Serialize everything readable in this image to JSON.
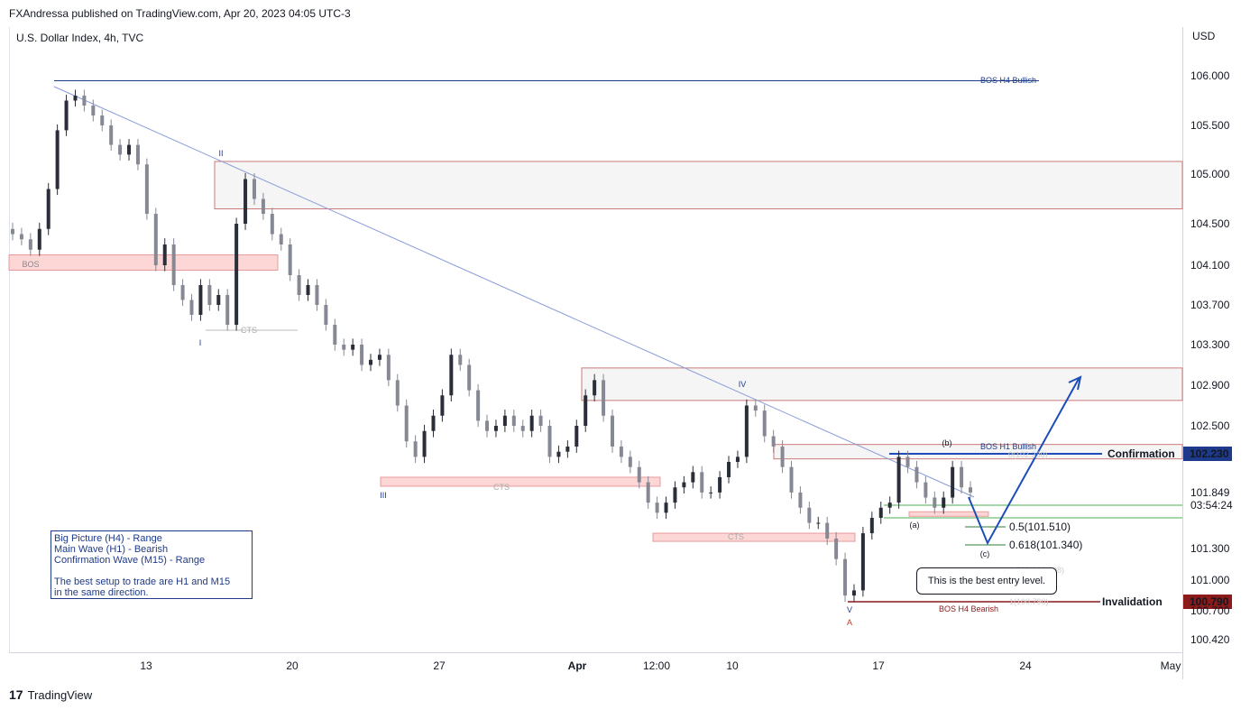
{
  "header": {
    "publish_line": "FXAndressa published on TradingView.com, Apr 20, 2023 04:05 UTC-3",
    "symbol_line": "U.S. Dollar Index, 4h, TVC"
  },
  "footer": {
    "brand": "TradingView",
    "logo_glyph": "17"
  },
  "chart_data": {
    "type": "candlestick",
    "currency_label": "USD",
    "price_ticks": [
      106.0,
      105.5,
      105.0,
      104.5,
      104.1,
      103.7,
      103.3,
      102.9,
      102.5,
      101.3,
      101.0,
      100.7,
      100.42
    ],
    "price_tick_labels": [
      "106.000",
      "105.500",
      "105.000",
      "104.500",
      "104.100",
      "103.700",
      "103.300",
      "102.900",
      "102.500",
      "101.300",
      "101.000",
      "100.700",
      "100.420"
    ],
    "time_labels": [
      "13",
      "20",
      "27",
      "Apr",
      "12:00",
      "10",
      "17",
      "24",
      "May"
    ],
    "series_close": [
      104.4,
      104.35,
      104.25,
      104.45,
      104.85,
      105.45,
      105.75,
      105.8,
      105.7,
      105.6,
      105.5,
      105.3,
      105.2,
      105.3,
      105.1,
      104.6,
      104.1,
      104.3,
      103.9,
      103.75,
      103.6,
      103.9,
      103.7,
      103.8,
      103.5,
      104.5,
      104.95,
      104.75,
      104.6,
      104.4,
      104.3,
      104.0,
      103.8,
      103.9,
      103.7,
      103.5,
      103.3,
      103.25,
      103.3,
      103.1,
      103.15,
      103.2,
      102.95,
      102.7,
      102.35,
      102.2,
      102.45,
      102.6,
      102.8,
      103.2,
      103.1,
      102.85,
      102.55,
      102.45,
      102.5,
      102.6,
      102.5,
      102.45,
      102.6,
      102.5,
      102.2,
      102.25,
      102.3,
      102.5,
      102.8,
      102.95,
      102.6,
      102.3,
      102.2,
      102.1,
      101.95,
      101.75,
      101.65,
      101.75,
      101.9,
      101.95,
      102.05,
      101.85,
      101.85,
      102.0,
      102.15,
      102.2,
      102.7,
      102.65,
      102.4,
      102.3,
      102.1,
      101.85,
      101.7,
      101.55,
      101.55,
      101.4,
      101.2,
      100.85,
      100.9,
      101.45,
      101.6,
      101.7,
      101.75,
      102.2,
      102.1,
      101.95,
      101.8,
      101.7,
      101.8,
      102.1,
      101.9,
      101.85
    ],
    "wave_labels": [
      "I",
      "II",
      "III",
      "IV",
      "V",
      "A",
      "(a)",
      "(b)",
      "(c)"
    ],
    "zone_labels": [
      "BOS",
      "CTS",
      "CTS",
      "CTS",
      "BOS H4 Bullish",
      "BOS H1 Bullish",
      "BOS H4 Bearish"
    ],
    "fib_levels": [
      {
        "label": "0.5(101.510)",
        "value": 101.51
      },
      {
        "label": "0.618(101.340)",
        "value": 101.34
      }
    ],
    "faded_fib_labels": [
      "0.786(101.098)",
      "1(100.790)",
      "0(102.230)"
    ],
    "confirmation": {
      "label": "Confirmation",
      "price_label": "102.230",
      "value": 102.23
    },
    "invalidation": {
      "label": "Invalidation",
      "price_label": "100.790",
      "value": 100.79
    },
    "current_price": {
      "label": "101.849",
      "countdown": "03:54:24",
      "value": 101.849
    },
    "bos_h4_bullish_price": 105.95,
    "colors": {
      "bullish": "#2a2e39",
      "bearish": "#868993",
      "blue": "#1e4cb8",
      "red": "#8b1a1a",
      "green": "#2e7d32",
      "zone_fill": "#f5f5f5",
      "zone_red": "#fdd6d6"
    }
  },
  "info_box": {
    "lines": [
      "Big Picture (H4) - Range",
      "Main Wave (H1) - Bearish",
      "Confirmation Wave (M15) - Range",
      "",
      "The best setup to trade are H1 and M15",
      "in the same direction."
    ]
  },
  "callout": {
    "text": "This is the best entry level."
  }
}
